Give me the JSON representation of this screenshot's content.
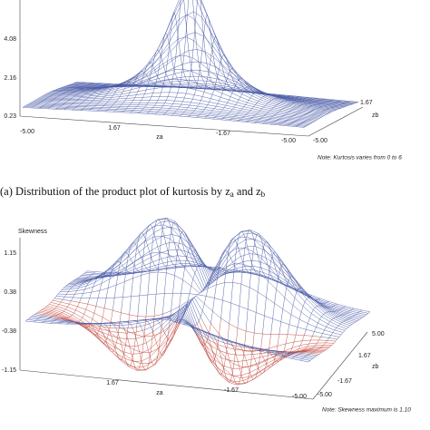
{
  "panels": [
    {
      "z_ticks": [
        "4.08",
        "2.16",
        "0.23"
      ],
      "x_ticks": [
        "-5.00",
        "1.67",
        "-1.67",
        "-5.00"
      ],
      "x_label": "za",
      "y_ticks": [
        "1.67",
        "-5.00"
      ],
      "y_label": "zb",
      "note": "Note: Kurtosis varies from 0 to 6",
      "caption": [
        "(a)  Distribution of the product plot of kurtosis by z",
        "a",
        " and z",
        "b"
      ]
    },
    {
      "title": "Skewness",
      "z_ticks": [
        "1.15",
        "0.38",
        "-0.38",
        "-1.15"
      ],
      "x_ticks": [
        "1.67",
        "-1.67",
        "-5.00"
      ],
      "x_label": "za",
      "y_ticks": [
        "5.00",
        "1.67",
        "-1.67",
        "-5.00"
      ],
      "y_label": "zb",
      "note": "Note: Skewness maximum is 1.10"
    }
  ]
}
